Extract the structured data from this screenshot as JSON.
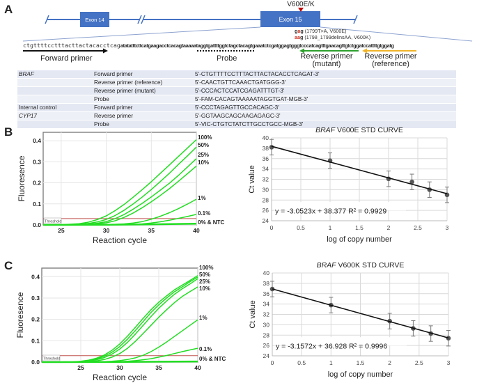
{
  "panel_a": {
    "letter": "A",
    "mutation_label": "V600E/K",
    "exons": [
      "Exon 14",
      "Exon 15"
    ],
    "sequence_plain": "ctgttttcctttacttactacacctcag",
    "sequence_bold": "atatatttcttcatgaagacctcacagtaaaaataggtgattttggtctagctacagtgaaatctcgatggagtgggtcccatcagtttgaacagttgtctggatccattttgtggatg",
    "mutations": [
      {
        "codon_prefix": "g",
        "codon_mut": "a",
        "codon_suffix": "g",
        "desc": " (1799T>A, V600E)"
      },
      {
        "codon_prefix": "",
        "codon_mut": "aa",
        "codon_suffix": "g",
        "desc": " (1798_1799delinsAA, V600K)"
      }
    ],
    "labels": {
      "forward_primer": "Forward primer",
      "probe": "Probe",
      "reverse_mutant_1": "Reverse primer",
      "reverse_mutant_2": "(mutant)",
      "reverse_reference_1": "Reverse primer",
      "reverse_reference_2": "(reference)"
    },
    "colors": {
      "exon": "#4472c4",
      "mutation_marker": "#c00000",
      "forward_arrow": "#111111",
      "reverse_mutant_arrow": "#2ca02c",
      "reverse_reference_arrow": "#f0b429"
    },
    "primer_table": [
      {
        "gene": "BRAF",
        "gene_italic": true,
        "type": "Forward primer",
        "sequence": "5'-CTGTTTTCCTTTACTTACTACACCTCAGAT-3'"
      },
      {
        "gene": "",
        "gene_italic": false,
        "type": "Reverse primer (reference)",
        "sequence": "5'-CAACTGTTCAAACTGATGGG-3'"
      },
      {
        "gene": "",
        "gene_italic": false,
        "type": "Reverse primer (mutant)",
        "sequence": "5'-CCCACTCCATCGAGATTTGT-3'"
      },
      {
        "gene": "",
        "gene_italic": false,
        "type": "Probe",
        "sequence": "5'-FAM-CACAGTAAAAATAGGTGAT-MGB-3'"
      },
      {
        "gene": "Internal control",
        "gene_italic": false,
        "type": "Forward primer",
        "sequence": "5'-CCCTAGAGTTGCCACAGC-3'"
      },
      {
        "gene": "CYP17",
        "gene_italic": true,
        "type": "Reverse primer",
        "sequence": "5'-GGTAAGCAGCAAGAGAGC-3'"
      },
      {
        "gene": "",
        "gene_italic": false,
        "type": "Probe",
        "sequence": "5'-VIC-CTGTCTATCTTGCCTGCC-MGB-3'"
      }
    ]
  },
  "chart_data": [
    {
      "id": "B-amplification",
      "panel": "B",
      "type": "line",
      "title": "",
      "xlabel": "Reaction cycle",
      "ylabel": "Fluoresence",
      "xlim": [
        23,
        40
      ],
      "ylim": [
        0,
        0.44
      ],
      "xticks": [
        25,
        30,
        35,
        40
      ],
      "yticks": [
        "0.0",
        "0.1",
        "0.2",
        "0.3",
        "0.4"
      ],
      "ytick_values": [
        0,
        0.1,
        0.2,
        0.3,
        0.4
      ],
      "grid": true,
      "threshold": {
        "label": "Threshold",
        "value": 0.03,
        "color": "#c0504d"
      },
      "line_color": "#22dd22",
      "series": [
        {
          "name": "100%",
          "ct": 29.5,
          "plateau": 0.4,
          "x": [
            23,
            25,
            27,
            28,
            29,
            30,
            31,
            32,
            33,
            34,
            35,
            36,
            37,
            38,
            39,
            40
          ],
          "y": [
            0,
            0.001,
            0.006,
            0.013,
            0.025,
            0.043,
            0.068,
            0.098,
            0.132,
            0.168,
            0.205,
            0.245,
            0.285,
            0.325,
            0.365,
            0.405
          ]
        },
        {
          "name": "50%",
          "x": [
            23,
            25,
            27,
            28,
            29,
            30,
            31,
            32,
            33,
            34,
            35,
            36,
            37,
            38,
            39,
            40
          ],
          "y": [
            0,
            0,
            0.003,
            0.007,
            0.014,
            0.026,
            0.045,
            0.07,
            0.1,
            0.133,
            0.168,
            0.206,
            0.245,
            0.287,
            0.328,
            0.37
          ]
        },
        {
          "name": "25%",
          "x": [
            23,
            25,
            27,
            28,
            29,
            30,
            31,
            32,
            33,
            34,
            35,
            36,
            37,
            38,
            39,
            40
          ],
          "y": [
            0,
            0,
            0.002,
            0.004,
            0.008,
            0.016,
            0.03,
            0.05,
            0.075,
            0.103,
            0.133,
            0.165,
            0.198,
            0.235,
            0.275,
            0.315
          ]
        },
        {
          "name": "10%",
          "x": [
            23,
            25,
            27,
            28,
            29,
            30,
            31,
            32,
            33,
            34,
            35,
            36,
            37,
            38,
            39,
            40
          ],
          "y": [
            0,
            0,
            0.001,
            0.002,
            0.005,
            0.01,
            0.02,
            0.036,
            0.057,
            0.082,
            0.11,
            0.14,
            0.172,
            0.207,
            0.243,
            0.28
          ]
        },
        {
          "name": "1%",
          "x": [
            23,
            25,
            27,
            29,
            30,
            31,
            32,
            33,
            34,
            35,
            36,
            37,
            38,
            39,
            40
          ],
          "y": [
            0,
            0,
            0,
            0.001,
            0.002,
            0.003,
            0.005,
            0.009,
            0.016,
            0.027,
            0.041,
            0.058,
            0.077,
            0.099,
            0.122
          ]
        },
        {
          "name": "0.1%",
          "x": [
            23,
            25,
            27,
            29,
            31,
            32,
            33,
            34,
            35,
            36,
            37,
            38,
            39,
            40
          ],
          "y": [
            0,
            0,
            0,
            0,
            0.001,
            0.002,
            0.003,
            0.005,
            0.009,
            0.015,
            0.022,
            0.031,
            0.04,
            0.05
          ]
        },
        {
          "name": "0% & NTC",
          "x": [
            23,
            30,
            35,
            40
          ],
          "y": [
            0,
            0.001,
            0.003,
            0.006
          ]
        }
      ]
    },
    {
      "id": "B-std-curve",
      "panel": "B",
      "type": "scatter",
      "title_italic": "BRAF",
      "title_rest": " V600E STD CURVE",
      "xlabel": "log of copy number",
      "ylabel": "Ct value",
      "xlim": [
        0,
        3
      ],
      "ylim": [
        24,
        40
      ],
      "xticks": [
        "0",
        "0.5",
        "1",
        "1.5",
        "2",
        "2.5",
        "3"
      ],
      "xtick_values": [
        0,
        0.5,
        1,
        1.5,
        2,
        2.5,
        3
      ],
      "yticks": [
        "24",
        "26",
        "28",
        "30",
        "32",
        "34",
        "36",
        "38",
        "40"
      ],
      "ytick_values": [
        24,
        26,
        28,
        30,
        32,
        34,
        36,
        38,
        40
      ],
      "grid": true,
      "points": {
        "x": [
          0,
          1,
          2,
          2.4,
          2.7,
          3
        ],
        "y": [
          38.2,
          35.6,
          32.1,
          31.5,
          30.0,
          29.0
        ],
        "err": [
          1.5,
          1.5,
          1.5,
          1.5,
          1.5,
          1.5
        ]
      },
      "trendline": {
        "slope": -3.0523,
        "intercept": 38.377,
        "r2": 0.9929
      },
      "equation": "y = -3.0523x + 38.377  R² = 0.9929"
    },
    {
      "id": "C-amplification",
      "panel": "C",
      "type": "line",
      "title": "",
      "xlabel": "Reaction cycle",
      "ylabel": "Fluoresence",
      "xlim": [
        20,
        40
      ],
      "ylim": [
        0,
        0.44
      ],
      "xticks": [
        25,
        30,
        35,
        40
      ],
      "yticks": [
        "0.0",
        "0.1",
        "0.2",
        "0.3",
        "0.4"
      ],
      "ytick_values": [
        0,
        0.1,
        0.2,
        0.3,
        0.4
      ],
      "grid": true,
      "threshold": {
        "label": "Threshold",
        "value": 0.03,
        "color": "#c0504d"
      },
      "line_color": "#22dd22",
      "series": [
        {
          "name": "100%",
          "x": [
            20,
            24,
            25,
            26,
            27,
            28,
            29,
            30,
            31,
            32,
            33,
            34,
            35,
            36,
            37,
            38,
            39,
            40
          ],
          "y": [
            0,
            0.001,
            0.004,
            0.009,
            0.018,
            0.033,
            0.055,
            0.085,
            0.122,
            0.163,
            0.205,
            0.245,
            0.28,
            0.31,
            0.338,
            0.36,
            0.382,
            0.405
          ]
        },
        {
          "name": "50%",
          "x": [
            20,
            24,
            25,
            26,
            27,
            28,
            29,
            30,
            31,
            32,
            33,
            34,
            35,
            36,
            37,
            38,
            39,
            40
          ],
          "y": [
            0,
            0,
            0.003,
            0.007,
            0.014,
            0.027,
            0.046,
            0.073,
            0.108,
            0.148,
            0.19,
            0.232,
            0.268,
            0.3,
            0.329,
            0.352,
            0.376,
            0.398
          ]
        },
        {
          "name": "25%",
          "x": [
            20,
            24,
            25,
            26,
            27,
            28,
            29,
            30,
            31,
            32,
            33,
            34,
            35,
            36,
            37,
            38,
            39,
            40
          ],
          "y": [
            0,
            0,
            0.002,
            0.005,
            0.011,
            0.021,
            0.037,
            0.061,
            0.093,
            0.131,
            0.172,
            0.213,
            0.252,
            0.286,
            0.317,
            0.343,
            0.366,
            0.39
          ]
        },
        {
          "name": "10%",
          "x": [
            20,
            24,
            25,
            26,
            27,
            28,
            29,
            30,
            31,
            32,
            33,
            34,
            35,
            36,
            37,
            38,
            39,
            40
          ],
          "y": [
            0,
            0,
            0.001,
            0.003,
            0.006,
            0.012,
            0.023,
            0.04,
            0.065,
            0.097,
            0.134,
            0.172,
            0.21,
            0.245,
            0.278,
            0.307,
            0.33,
            0.352
          ]
        },
        {
          "name": "1%",
          "x": [
            20,
            26,
            28,
            29,
            30,
            31,
            32,
            33,
            34,
            35,
            36,
            37,
            38,
            39,
            40
          ],
          "y": [
            0,
            0,
            0.002,
            0.004,
            0.007,
            0.012,
            0.02,
            0.032,
            0.049,
            0.07,
            0.094,
            0.12,
            0.146,
            0.172,
            0.198
          ]
        },
        {
          "name": "0.1%",
          "x": [
            20,
            28,
            30,
            31,
            32,
            33,
            34,
            35,
            36,
            37,
            38,
            39,
            40
          ],
          "y": [
            0,
            0,
            0.002,
            0.004,
            0.007,
            0.011,
            0.016,
            0.023,
            0.031,
            0.04,
            0.049,
            0.057,
            0.065
          ]
        },
        {
          "name": "0% & NTC",
          "x": [
            20,
            30,
            35,
            40
          ],
          "y": [
            0,
            0.001,
            0.002,
            0.003
          ]
        }
      ]
    },
    {
      "id": "C-std-curve",
      "panel": "C",
      "type": "scatter",
      "title_italic": "BRAF",
      "title_rest": " V600K STD CURVE",
      "xlabel": "log of copy number",
      "ylabel": "Ct value",
      "xlim": [
        0,
        3
      ],
      "ylim": [
        24,
        40
      ],
      "xticks": [
        "0",
        "0.5",
        "1",
        "1.5",
        "2",
        "2.5",
        "3"
      ],
      "xtick_values": [
        0,
        0.5,
        1,
        1.5,
        2,
        2.5,
        3
      ],
      "yticks": [
        "24",
        "26",
        "28",
        "30",
        "32",
        "34",
        "36",
        "38",
        "40"
      ],
      "ytick_values": [
        24,
        26,
        28,
        30,
        32,
        34,
        36,
        38,
        40
      ],
      "grid": true,
      "points": {
        "x": [
          0,
          1,
          2,
          2.4,
          2.7,
          3
        ],
        "y": [
          36.9,
          33.8,
          30.7,
          29.3,
          28.3,
          27.4
        ],
        "err": [
          1.5,
          1.5,
          1.5,
          1.5,
          1.5,
          1.5
        ]
      },
      "trendline": {
        "slope": -3.1572,
        "intercept": 36.928,
        "r2": 0.9996
      },
      "equation": "y = -3.1572x + 36.928  R² = 0.9996"
    }
  ],
  "panel_letters": {
    "b": "B",
    "c": "C"
  }
}
